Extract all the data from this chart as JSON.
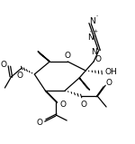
{
  "bg_color": "#ffffff",
  "line_color": "#000000",
  "lw": 0.9,
  "fig_width": 1.5,
  "fig_height": 1.59,
  "dpi": 100,
  "xlim": [
    0,
    150
  ],
  "ylim": [
    0,
    159
  ]
}
